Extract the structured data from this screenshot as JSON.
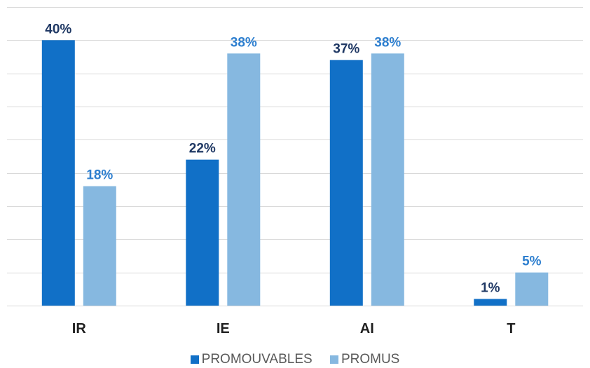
{
  "chart_data": {
    "type": "bar",
    "title": "",
    "xlabel": "",
    "ylabel": "",
    "categories": [
      "IR",
      "IE",
      "AI",
      "T"
    ],
    "series": [
      {
        "name": "PROMOUVABLES",
        "color": "#1170c7",
        "label_color": "#1f3864",
        "values": [
          40,
          22,
          37,
          1
        ],
        "labels": [
          "40%",
          "22%",
          "37%",
          "1%"
        ]
      },
      {
        "name": "PROMUS",
        "color": "#86b8e0",
        "label_color": "#2e7fcf",
        "values": [
          18,
          38,
          38,
          5
        ],
        "labels": [
          "18%",
          "38%",
          "38%",
          "5%"
        ]
      }
    ],
    "ylim": [
      0,
      40
    ],
    "grid": true,
    "legend_position": "bottom"
  }
}
